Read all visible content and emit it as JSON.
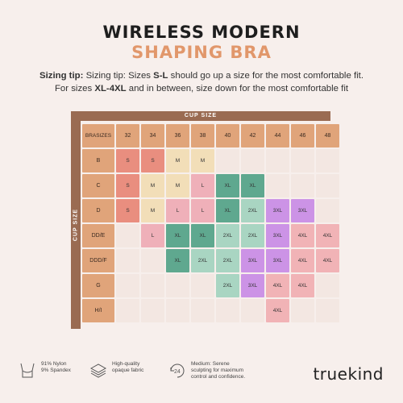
{
  "title_line1": "WIRELESS MODERN",
  "title_line2": "SHAPING BRA",
  "tip": {
    "prefix": "Sizing tip:",
    "text_a": " Sizing tip: Sizes ",
    "bold_a": "S-L",
    "text_b": " should go up a size for the most comfortable fit.",
    "text_c": "For sizes ",
    "bold_b": "XL-4XL",
    "text_d": " and in between, size down for the most comfortable fit"
  },
  "cup_size_label": "CUP SIZE",
  "bra_sizes_label": "BRA\nSIZES",
  "colors": {
    "S": "#e98e7f",
    "M": "#f2deb8",
    "L": "#efb0b9",
    "XL": "#5fa88f",
    "2XL": "#a9d5c2",
    "3XL": "#cc93e6",
    "4XL": "#f1b3b6",
    "header": "#e0a47a",
    "band": "#9a6b52",
    "empty": "#f3e7e2"
  },
  "band_sizes": [
    "32",
    "34",
    "36",
    "38",
    "40",
    "42",
    "44",
    "46",
    "48"
  ],
  "rows": [
    {
      "cup": "B",
      "cells": [
        "S",
        "S",
        "M",
        "M",
        "",
        "",
        "",
        "",
        ""
      ]
    },
    {
      "cup": "C",
      "cells": [
        "S",
        "M",
        "M",
        "L",
        "XL",
        "XL",
        "",
        "",
        ""
      ]
    },
    {
      "cup": "D",
      "cells": [
        "S",
        "M",
        "L",
        "L",
        "XL",
        "2XL",
        "3XL",
        "3XL",
        ""
      ]
    },
    {
      "cup": "DD/E",
      "cells": [
        "",
        "L",
        "XL",
        "XL",
        "2XL",
        "2XL",
        "3XL",
        "4XL",
        "4XL"
      ]
    },
    {
      "cup": "DDD/F",
      "cells": [
        "",
        "",
        "XL",
        "2XL",
        "2XL",
        "3XL",
        "3XL",
        "4XL",
        "4XL"
      ]
    },
    {
      "cup": "G",
      "cells": [
        "",
        "",
        "",
        "",
        "2XL",
        "3XL",
        "4XL",
        "4XL",
        ""
      ]
    },
    {
      "cup": "H/I",
      "cells": [
        "",
        "",
        "",
        "",
        "",
        "",
        "4XL",
        "",
        ""
      ]
    }
  ],
  "features": [
    {
      "icon": "bra-icon",
      "line1": "91% Nylon",
      "line2": "9% Spandex",
      "line3": ""
    },
    {
      "icon": "fabric-icon",
      "line1": "High-quality",
      "line2": "opaque fabric",
      "line3": ""
    },
    {
      "icon": "24h-icon",
      "line1": "Medium: Serene",
      "line2": "sculpting for maximum",
      "line3": "control and confidence."
    }
  ],
  "brand": "truekind"
}
